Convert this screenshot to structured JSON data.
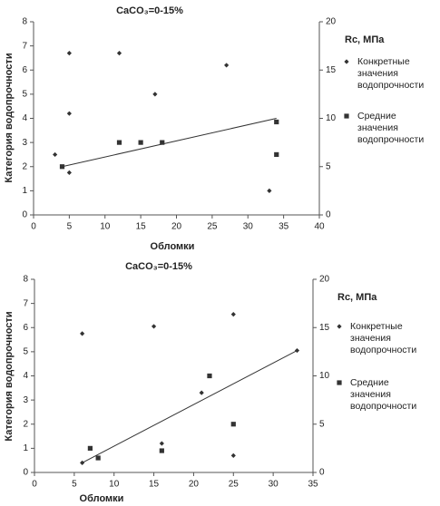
{
  "chart_data": [
    {
      "type": "scatter",
      "title": "CaCO₃=0-15%",
      "x_label": "Обломки",
      "y_label": "Категория водопрочности",
      "y2_label": "Rc, МПа",
      "xlim": [
        0,
        40
      ],
      "xticks": [
        0,
        5,
        10,
        15,
        20,
        25,
        30,
        35,
        40
      ],
      "ylim": [
        0,
        8
      ],
      "yticks": [
        0,
        1,
        2,
        3,
        4,
        5,
        6,
        7,
        8
      ],
      "y2lim": [
        0,
        20
      ],
      "y2ticks": [
        0,
        5,
        10,
        15,
        20
      ],
      "series": [
        {
          "name": "Конкретные значения водопрочности",
          "color": "#333333",
          "marker": "diamond",
          "x": [
            3,
            5,
            5,
            5,
            12,
            17,
            27,
            33
          ],
          "values": [
            2.5,
            6.7,
            4.2,
            1.75,
            6.7,
            5.0,
            6.2,
            1.0
          ]
        },
        {
          "name": "Средние значения водопрочности",
          "color": "#333333",
          "marker": "square",
          "x": [
            4,
            12,
            15,
            18,
            34,
            34
          ],
          "values": [
            2.0,
            3.0,
            3.0,
            3.0,
            3.85,
            2.5
          ]
        }
      ],
      "trendline": {
        "color": "#333333",
        "x": [
          4,
          34
        ],
        "values": [
          2.0,
          4.0
        ]
      }
    },
    {
      "type": "scatter",
      "title": "CaCO₃=0-15%",
      "x_label": "Обломки",
      "y_label": "Категория водопрочности",
      "y2_label": "Rc, МПа",
      "xlim": [
        0,
        35
      ],
      "xticks": [
        0,
        5,
        10,
        15,
        20,
        25,
        30,
        35
      ],
      "ylim": [
        0,
        8
      ],
      "yticks": [
        0,
        1,
        2,
        3,
        4,
        5,
        6,
        7,
        8
      ],
      "y2lim": [
        0,
        20
      ],
      "y2ticks": [
        0,
        5,
        10,
        15,
        20
      ],
      "series": [
        {
          "name": "Конкретные значения водопрочности",
          "color": "#333333",
          "marker": "diamond",
          "x": [
            6,
            15,
            25,
            21,
            16,
            25,
            6,
            33
          ],
          "values": [
            5.75,
            6.05,
            6.55,
            3.3,
            1.2,
            0.7,
            0.4,
            5.05
          ]
        },
        {
          "name": "Средние значения водопрочности",
          "color": "#333333",
          "marker": "square",
          "x": [
            7,
            8,
            16,
            22,
            25
          ],
          "values": [
            1.0,
            0.6,
            0.9,
            4.0,
            2.0
          ]
        }
      ],
      "trendline": {
        "color": "#333333",
        "x": [
          6,
          33
        ],
        "values": [
          0.4,
          5.05
        ]
      }
    }
  ]
}
